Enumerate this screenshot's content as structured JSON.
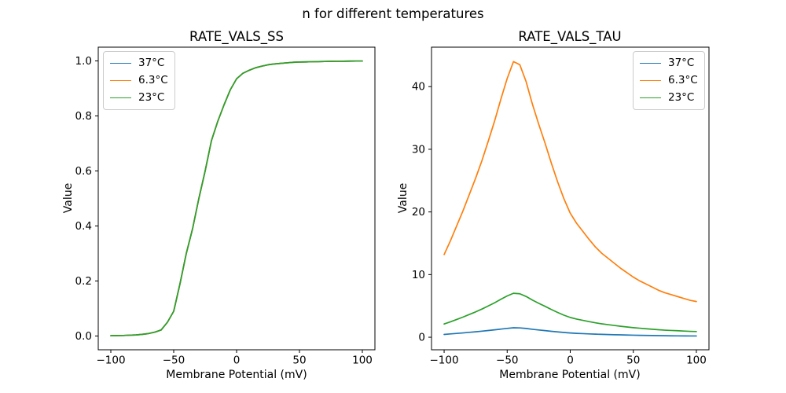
{
  "figure": {
    "suptitle": "n for different temperatures",
    "background": "#ffffff",
    "text_color": "#000000"
  },
  "chart_data": [
    {
      "type": "line",
      "title": "RATE_VALS_SS",
      "xlabel": "Membrane Potential (mV)",
      "ylabel": "Value",
      "xlim": [
        -110,
        110
      ],
      "ylim": [
        -0.05,
        1.05
      ],
      "xticks": [
        -100,
        -50,
        0,
        50,
        100
      ],
      "xtick_labels": [
        "−100",
        "−50",
        "0",
        "50",
        "100"
      ],
      "yticks": [
        0.0,
        0.2,
        0.4,
        0.6,
        0.8,
        1.0
      ],
      "ytick_labels": [
        "0.0",
        "0.2",
        "0.4",
        "0.6",
        "0.8",
        "1.0"
      ],
      "grid": false,
      "legend_position": "upper-left",
      "x": [
        -100,
        -95,
        -90,
        -85,
        -80,
        -75,
        -70,
        -65,
        -60,
        -55,
        -50,
        -45,
        -40,
        -35,
        -30,
        -25,
        -20,
        -15,
        -10,
        -5,
        0,
        5,
        10,
        15,
        20,
        25,
        30,
        35,
        40,
        45,
        50,
        55,
        60,
        65,
        70,
        75,
        80,
        85,
        90,
        95,
        100
      ],
      "series": [
        {
          "name": "37°C",
          "color": "#1f77b4",
          "values": [
            0.001,
            0.0015,
            0.002,
            0.003,
            0.004,
            0.006,
            0.009,
            0.014,
            0.022,
            0.05,
            0.09,
            0.19,
            0.3,
            0.39,
            0.5,
            0.6,
            0.71,
            0.78,
            0.84,
            0.895,
            0.935,
            0.955,
            0.966,
            0.975,
            0.981,
            0.986,
            0.989,
            0.991,
            0.993,
            0.995,
            0.996,
            0.9965,
            0.997,
            0.9975,
            0.998,
            0.9985,
            0.9987,
            0.999,
            0.9992,
            0.9994,
            0.9995
          ]
        },
        {
          "name": "6.3°C",
          "color": "#ff7f0e",
          "values": [
            0.001,
            0.0015,
            0.002,
            0.003,
            0.004,
            0.006,
            0.009,
            0.014,
            0.022,
            0.05,
            0.09,
            0.19,
            0.3,
            0.39,
            0.5,
            0.6,
            0.71,
            0.78,
            0.84,
            0.895,
            0.935,
            0.955,
            0.966,
            0.975,
            0.981,
            0.986,
            0.989,
            0.991,
            0.993,
            0.995,
            0.996,
            0.9965,
            0.997,
            0.9975,
            0.998,
            0.9985,
            0.9987,
            0.999,
            0.9992,
            0.9994,
            0.9995
          ]
        },
        {
          "name": "23°C",
          "color": "#2ca02c",
          "values": [
            0.001,
            0.0015,
            0.002,
            0.003,
            0.004,
            0.006,
            0.009,
            0.014,
            0.022,
            0.05,
            0.09,
            0.19,
            0.3,
            0.39,
            0.5,
            0.6,
            0.71,
            0.78,
            0.84,
            0.895,
            0.935,
            0.955,
            0.966,
            0.975,
            0.981,
            0.986,
            0.989,
            0.991,
            0.993,
            0.995,
            0.996,
            0.9965,
            0.997,
            0.9975,
            0.998,
            0.9985,
            0.9987,
            0.999,
            0.9992,
            0.9994,
            0.9995
          ]
        }
      ]
    },
    {
      "type": "line",
      "title": "RATE_VALS_TAU",
      "xlabel": "Membrane Potential (mV)",
      "ylabel": "Value",
      "xlim": [
        -110,
        110
      ],
      "ylim": [
        -2,
        46.3
      ],
      "xticks": [
        -100,
        -50,
        0,
        50,
        100
      ],
      "xtick_labels": [
        "−100",
        "−50",
        "0",
        "50",
        "100"
      ],
      "yticks": [
        0,
        10,
        20,
        30,
        40
      ],
      "ytick_labels": [
        "0",
        "10",
        "20",
        "30",
        "40"
      ],
      "grid": false,
      "legend_position": "upper-right",
      "x": [
        -100,
        -95,
        -90,
        -85,
        -80,
        -75,
        -70,
        -65,
        -60,
        -55,
        -50,
        -45,
        -40,
        -35,
        -30,
        -25,
        -20,
        -15,
        -10,
        -5,
        0,
        5,
        10,
        15,
        20,
        25,
        30,
        35,
        40,
        45,
        50,
        55,
        60,
        65,
        70,
        75,
        80,
        85,
        90,
        95,
        100
      ],
      "series": [
        {
          "name": "37°C",
          "color": "#1f77b4",
          "values": [
            0.45,
            0.53,
            0.61,
            0.69,
            0.78,
            0.87,
            0.97,
            1.07,
            1.18,
            1.3,
            1.41,
            1.51,
            1.49,
            1.4,
            1.27,
            1.16,
            1.06,
            0.95,
            0.85,
            0.76,
            0.68,
            0.62,
            0.58,
            0.53,
            0.49,
            0.46,
            0.43,
            0.4,
            0.38,
            0.35,
            0.33,
            0.31,
            0.29,
            0.27,
            0.26,
            0.24,
            0.23,
            0.22,
            0.21,
            0.2,
            0.2
          ]
        },
        {
          "name": "6.3°C",
          "color": "#ff7f0e",
          "values": [
            13.2,
            15.4,
            17.8,
            20.2,
            22.8,
            25.4,
            28.2,
            31.3,
            34.5,
            38.0,
            41.3,
            44.0,
            43.5,
            40.8,
            37.2,
            34.0,
            31.0,
            27.8,
            24.8,
            22.1,
            19.8,
            18.2,
            16.9,
            15.6,
            14.4,
            13.4,
            12.6,
            11.8,
            11.0,
            10.3,
            9.6,
            9.0,
            8.5,
            8.0,
            7.5,
            7.1,
            6.8,
            6.5,
            6.2,
            5.9,
            5.7
          ]
        },
        {
          "name": "23°C",
          "color": "#2ca02c",
          "values": [
            2.11,
            2.46,
            2.84,
            3.22,
            3.64,
            4.05,
            4.5,
            4.99,
            5.5,
            6.06,
            6.59,
            7.02,
            6.94,
            6.51,
            5.93,
            5.42,
            4.94,
            4.43,
            3.96,
            3.52,
            3.16,
            2.9,
            2.7,
            2.49,
            2.3,
            2.14,
            2.01,
            1.88,
            1.75,
            1.64,
            1.53,
            1.44,
            1.36,
            1.28,
            1.2,
            1.13,
            1.08,
            1.04,
            0.99,
            0.94,
            0.91
          ]
        }
      ]
    }
  ]
}
